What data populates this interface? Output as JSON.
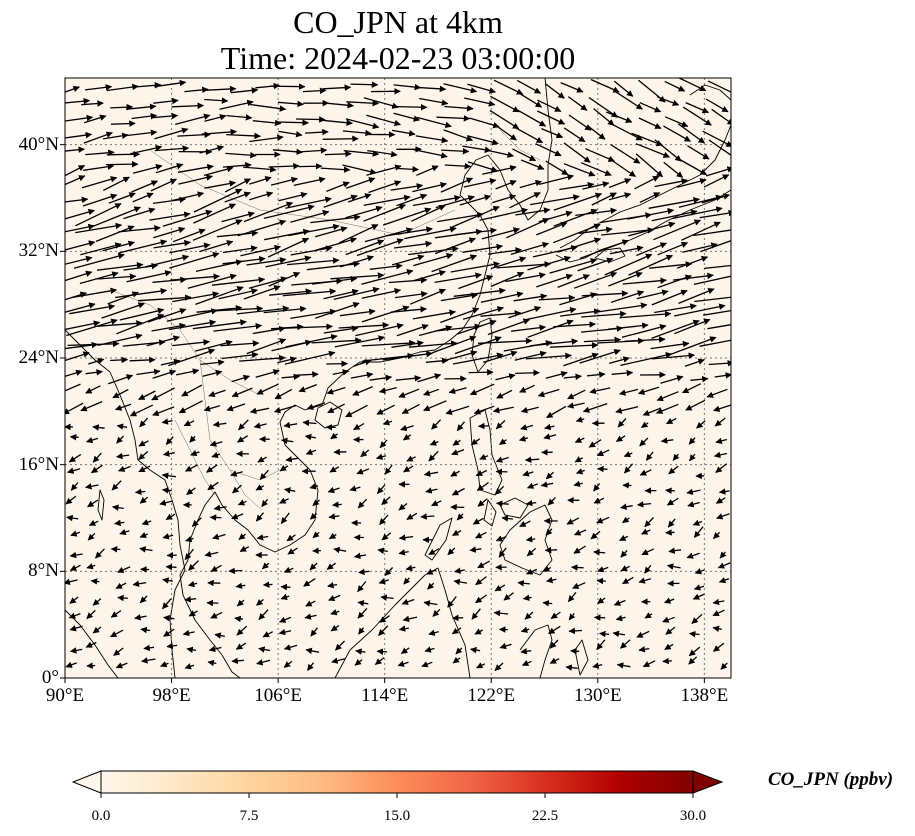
{
  "title": {
    "line1": "CO_JPN at 4km",
    "line2": "Time: 2024-02-23 03:00:00"
  },
  "map": {
    "background_color": "#fdf5e9",
    "coastline_color": "#000000",
    "grid_style": "dotted",
    "lon_range": [
      90,
      140
    ],
    "lat_range": [
      0,
      45
    ],
    "lat_ticks": [
      {
        "value": 0,
        "label": "0°"
      },
      {
        "value": 8,
        "label": "8°N"
      },
      {
        "value": 16,
        "label": "16°N"
      },
      {
        "value": 24,
        "label": "24°N"
      },
      {
        "value": 32,
        "label": "32°N"
      },
      {
        "value": 40,
        "label": "40°N"
      }
    ],
    "lon_ticks": [
      {
        "value": 90,
        "label": "90°E"
      },
      {
        "value": 98,
        "label": "98°E"
      },
      {
        "value": 106,
        "label": "106°E"
      },
      {
        "value": 114,
        "label": "114°E"
      },
      {
        "value": 122,
        "label": "122°E"
      },
      {
        "value": 130,
        "label": "130°E"
      },
      {
        "value": 138,
        "label": "138°E"
      }
    ]
  },
  "colorbar": {
    "label": "CO_JPN (ppbv)",
    "colormap": "OrRd",
    "colors": [
      "#fff7ec",
      "#fee8c8",
      "#fdd49e",
      "#fdbb84",
      "#fc8d59",
      "#ef6548",
      "#d7301f",
      "#b30000",
      "#7f0000"
    ],
    "min": 0.0,
    "max": 30.0,
    "ticks": [
      "0.0",
      "7.5",
      "15.0",
      "22.5",
      "30.0"
    ],
    "extend": "both"
  }
}
